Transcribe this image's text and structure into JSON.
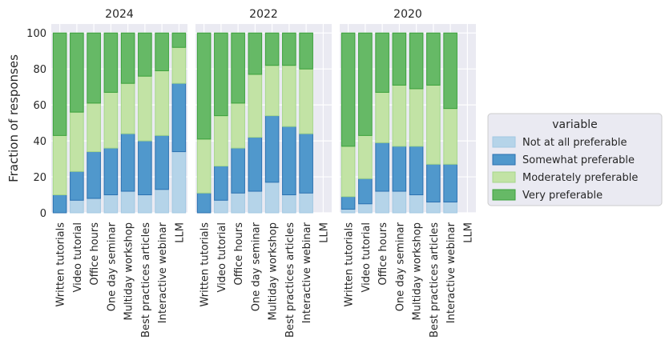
{
  "chart_data": {
    "type": "bar",
    "stacked": true,
    "ylabel": "Fraction of responses",
    "ylim": [
      0,
      105
    ],
    "yticks": [
      0,
      20,
      40,
      60,
      80,
      100
    ],
    "categories": [
      "Written tutorials",
      "Video tutorial",
      "Office hours",
      "One day seminar",
      "Multiday workshop",
      "Best practices articles",
      "Interactive webinar",
      "LLM"
    ],
    "legend": {
      "title": "variable",
      "placement": "right",
      "entries": [
        "Not at all preferable",
        "Somewhat preferable",
        "Moderately preferable",
        "Very preferable"
      ]
    },
    "colors": {
      "fills": [
        "#b5d4e9",
        "#5098cc",
        "#c2e3a5",
        "#66b966"
      ],
      "edges": [
        "#a2c8e2",
        "#2b71b1",
        "#a5d78a",
        "#3ca13c"
      ],
      "panel_bg": "#eaeaf2",
      "grid": "#ffffff"
    },
    "panels": [
      {
        "title": "2024",
        "series": [
          {
            "name": "Not at all preferable",
            "values": [
              0,
              7,
              8,
              10,
              12,
              10,
              13,
              34
            ]
          },
          {
            "name": "Somewhat preferable",
            "values": [
              10,
              16,
              26,
              26,
              32,
              30,
              30,
              38
            ]
          },
          {
            "name": "Moderately preferable",
            "values": [
              33,
              33,
              27,
              31,
              28,
              36,
              36,
              20
            ]
          },
          {
            "name": "Very preferable",
            "values": [
              57,
              44,
              39,
              33,
              28,
              24,
              21,
              8
            ]
          }
        ]
      },
      {
        "title": "2022",
        "series": [
          {
            "name": "Not at all preferable",
            "values": [
              0,
              7,
              11,
              12,
              17,
              10,
              11,
              null
            ]
          },
          {
            "name": "Somewhat preferable",
            "values": [
              11,
              19,
              25,
              30,
              37,
              38,
              33,
              null
            ]
          },
          {
            "name": "Moderately preferable",
            "values": [
              30,
              28,
              25,
              35,
              28,
              34,
              36,
              null
            ]
          },
          {
            "name": "Very preferable",
            "values": [
              59,
              46,
              39,
              23,
              18,
              18,
              20,
              null
            ]
          }
        ]
      },
      {
        "title": "2020",
        "series": [
          {
            "name": "Not at all preferable",
            "values": [
              2,
              5,
              12,
              12,
              10,
              6,
              6,
              null
            ]
          },
          {
            "name": "Somewhat preferable",
            "values": [
              7,
              14,
              27,
              25,
              27,
              21,
              21,
              null
            ]
          },
          {
            "name": "Moderately preferable",
            "values": [
              28,
              24,
              28,
              34,
              32,
              44,
              31,
              null
            ]
          },
          {
            "name": "Very preferable",
            "values": [
              63,
              57,
              33,
              29,
              31,
              29,
              42,
              null
            ]
          }
        ]
      }
    ]
  }
}
